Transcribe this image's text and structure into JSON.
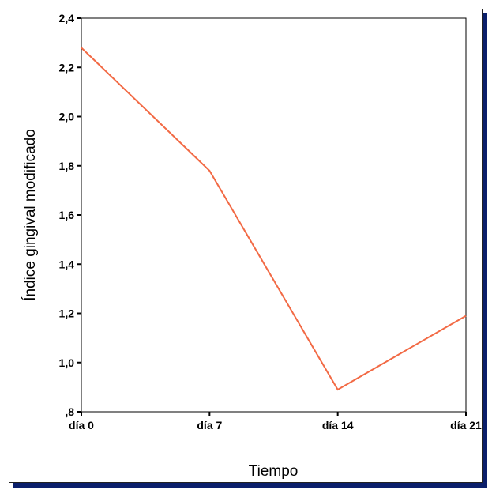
{
  "chart_data": {
    "type": "line",
    "xlabel": "Tiempo",
    "ylabel": "Índice gingival modificado",
    "categories": [
      "día 0",
      "día 7",
      "día 14",
      "día 21"
    ],
    "series": [
      {
        "values": [
          2.28,
          1.78,
          0.89,
          1.19
        ],
        "color": "#f26a45"
      }
    ],
    "ylim": [
      0.8,
      2.4
    ],
    "yticks": [
      0.8,
      1.0,
      1.2,
      1.4,
      1.6,
      1.8,
      2.0,
      2.2,
      2.4
    ],
    "ytick_labels": [
      ",8",
      "1,0",
      "1,2",
      "1,4",
      "1,6",
      "1,8",
      "2,0",
      "2,2",
      "2,4"
    ],
    "grid": false,
    "legend": "none"
  }
}
